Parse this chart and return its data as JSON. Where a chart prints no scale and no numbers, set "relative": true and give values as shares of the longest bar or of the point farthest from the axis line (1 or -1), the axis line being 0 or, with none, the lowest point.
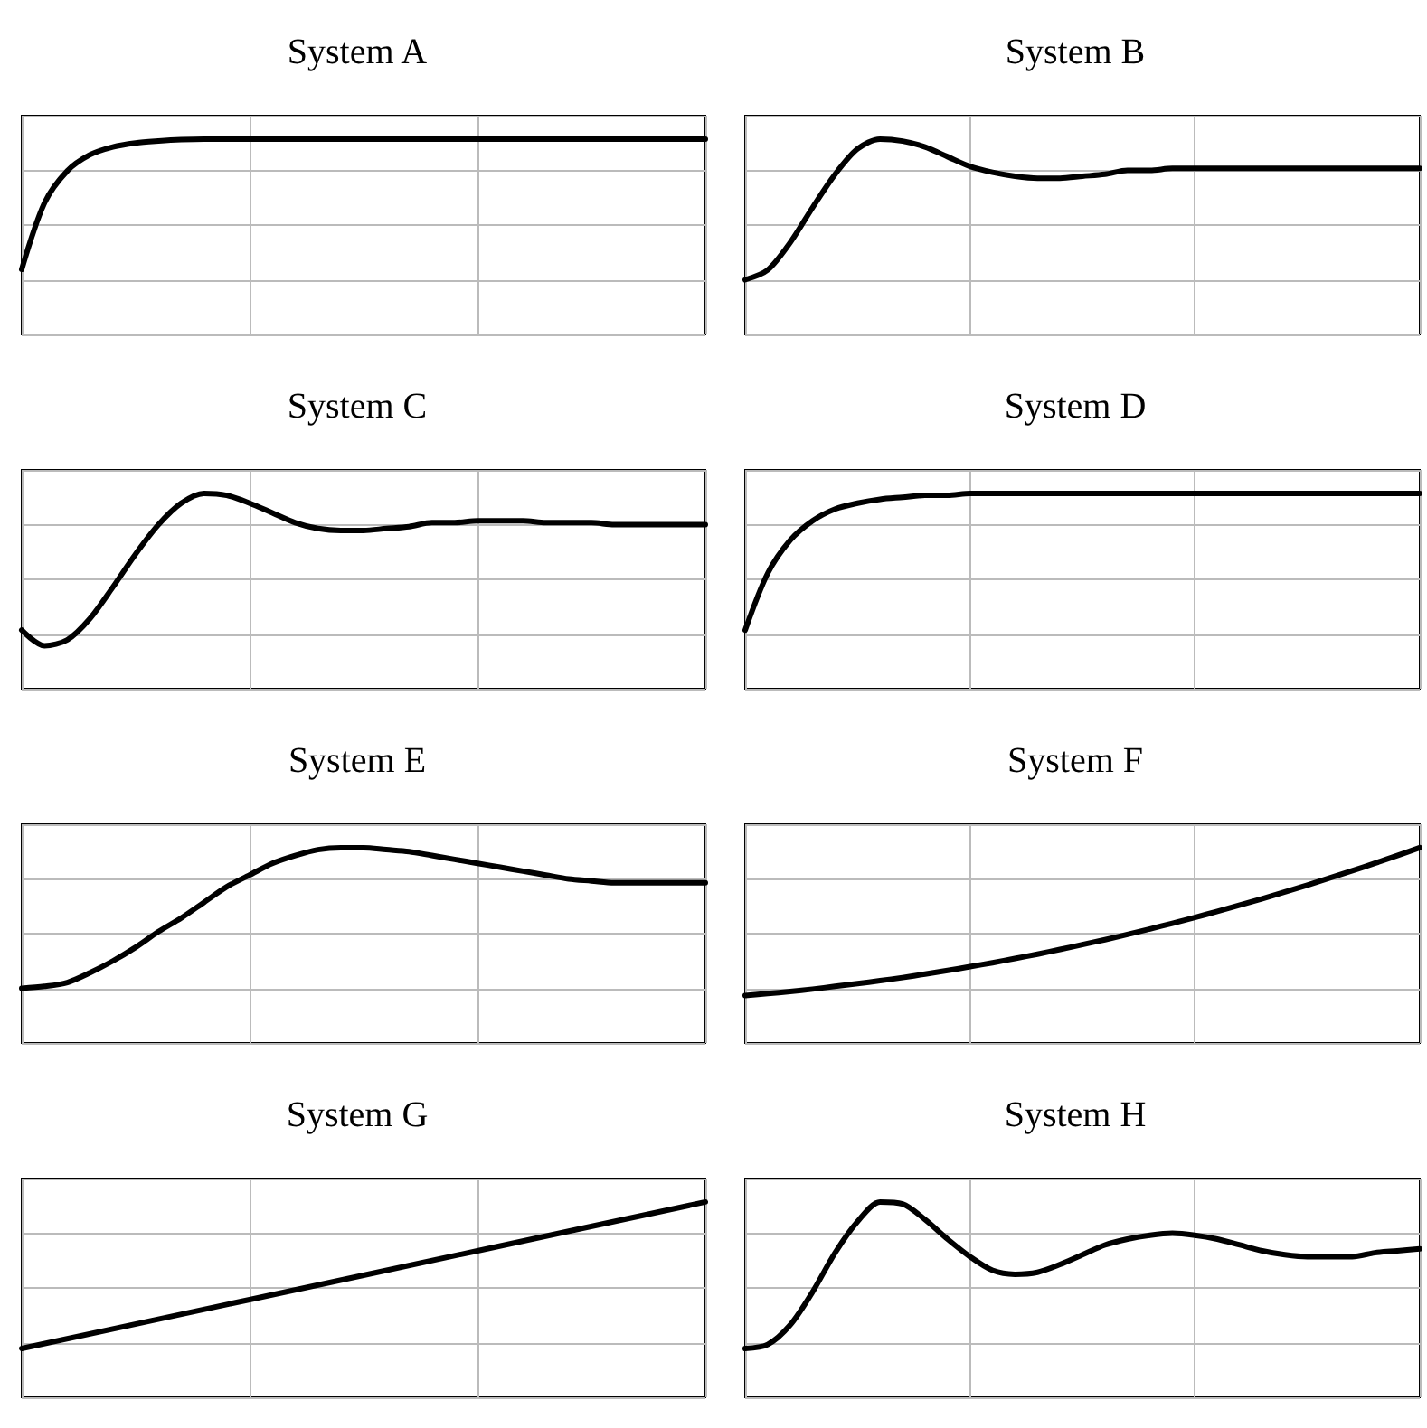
{
  "chart_data": [
    {
      "type": "line",
      "title": "System A",
      "relative": true,
      "grid": true,
      "marker": "none",
      "line_style": "solid",
      "color": "#000000",
      "categories": [
        null,
        null,
        null,
        null,
        null,
        null,
        null,
        null,
        null,
        null,
        null,
        null,
        null,
        null,
        null,
        null,
        null,
        null,
        null,
        null,
        null,
        null,
        null,
        null,
        null,
        null,
        null,
        null,
        null,
        null,
        null
      ],
      "values": [
        0.333,
        0.673,
        0.837,
        0.92,
        0.96,
        0.98,
        0.99,
        0.997,
        1,
        1,
        1,
        1,
        1,
        1,
        1,
        1,
        1,
        1,
        1,
        1,
        1,
        1,
        1,
        1,
        1,
        1,
        1,
        1,
        1,
        1,
        1
      ]
    },
    {
      "type": "line",
      "title": "System B",
      "relative": true,
      "grid": true,
      "marker": "none",
      "line_style": "solid",
      "color": "#000000",
      "categories": [
        null,
        null,
        null,
        null,
        null,
        null,
        null,
        null,
        null,
        null,
        null,
        null,
        null,
        null,
        null,
        null,
        null,
        null,
        null,
        null,
        null,
        null,
        null,
        null,
        null,
        null,
        null,
        null,
        null,
        null,
        null
      ],
      "values": [
        0.28,
        0.33,
        0.47,
        0.65,
        0.82,
        0.95,
        1,
        0.99,
        0.96,
        0.91,
        0.86,
        0.83,
        0.81,
        0.8,
        0.8,
        0.81,
        0.82,
        0.84,
        0.84,
        0.85,
        0.85,
        0.85,
        0.85,
        0.85,
        0.85,
        0.85,
        0.85,
        0.85,
        0.85,
        0.85,
        0.85
      ]
    },
    {
      "type": "line",
      "title": "System C",
      "relative": true,
      "grid": true,
      "marker": "none",
      "line_style": "solid",
      "color": "#000000",
      "categories": [
        null,
        null,
        null,
        null,
        null,
        null,
        null,
        null,
        null,
        null,
        null,
        null,
        null,
        null,
        null,
        null,
        null,
        null,
        null,
        null,
        null,
        null,
        null,
        null,
        null,
        null,
        null,
        null,
        null,
        null,
        null
      ],
      "values": [
        0.3,
        0.22,
        0.25,
        0.36,
        0.52,
        0.69,
        0.84,
        0.95,
        1,
        0.99,
        0.95,
        0.9,
        0.85,
        0.82,
        0.81,
        0.81,
        0.82,
        0.83,
        0.85,
        0.85,
        0.86,
        0.86,
        0.86,
        0.85,
        0.85,
        0.85,
        0.84,
        0.84,
        0.84,
        0.84,
        0.84
      ]
    },
    {
      "type": "line",
      "title": "System D",
      "relative": true,
      "grid": true,
      "marker": "none",
      "line_style": "solid",
      "color": "#000000",
      "categories": [
        null,
        null,
        null,
        null,
        null,
        null,
        null,
        null,
        null,
        null,
        null,
        null,
        null,
        null,
        null,
        null,
        null,
        null,
        null,
        null,
        null,
        null,
        null,
        null,
        null,
        null,
        null,
        null,
        null,
        null,
        null
      ],
      "values": [
        0.3,
        0.59,
        0.76,
        0.86,
        0.92,
        0.95,
        0.97,
        0.98,
        0.99,
        0.99,
        1,
        1,
        1,
        1,
        1,
        1,
        1,
        1,
        1,
        1,
        1,
        1,
        1,
        1,
        1,
        1,
        1,
        1,
        1,
        1,
        1
      ]
    },
    {
      "type": "line",
      "title": "System E",
      "relative": true,
      "grid": true,
      "marker": "none",
      "line_style": "solid",
      "color": "#000000",
      "categories": [
        null,
        null,
        null,
        null,
        null,
        null,
        null,
        null,
        null,
        null,
        null,
        null,
        null,
        null,
        null,
        null,
        null,
        null,
        null,
        null,
        null,
        null,
        null,
        null,
        null,
        null,
        null,
        null,
        null,
        null,
        null
      ],
      "values": [
        0.28,
        0.29,
        0.31,
        0.36,
        0.42,
        0.49,
        0.57,
        0.64,
        0.72,
        0.8,
        0.86,
        0.92,
        0.96,
        0.99,
        1,
        1,
        0.99,
        0.98,
        0.96,
        0.94,
        0.92,
        0.9,
        0.88,
        0.86,
        0.84,
        0.83,
        0.82,
        0.82,
        0.82,
        0.82,
        0.82
      ]
    },
    {
      "type": "line",
      "title": "System F",
      "relative": true,
      "grid": true,
      "marker": "none",
      "line_style": "solid",
      "color": "#000000",
      "categories": [
        null,
        null,
        null,
        null,
        null,
        null,
        null,
        null,
        null,
        null,
        null,
        null,
        null,
        null,
        null,
        null,
        null,
        null,
        null,
        null,
        null,
        null,
        null,
        null,
        null,
        null,
        null,
        null,
        null,
        null,
        null
      ],
      "values": [
        0.243,
        0.253,
        0.264,
        0.276,
        0.29,
        0.304,
        0.319,
        0.335,
        0.353,
        0.371,
        0.391,
        0.411,
        0.433,
        0.455,
        0.479,
        0.504,
        0.529,
        0.556,
        0.584,
        0.613,
        0.643,
        0.674,
        0.706,
        0.739,
        0.773,
        0.808,
        0.845,
        0.882,
        0.92,
        0.96,
        1
      ]
    },
    {
      "type": "line",
      "title": "System G",
      "relative": true,
      "grid": true,
      "marker": "none",
      "line_style": "solid",
      "color": "#000000",
      "categories": [
        null,
        null,
        null,
        null
      ],
      "values": [
        0.25,
        0.5,
        0.75,
        1
      ]
    },
    {
      "type": "line",
      "title": "System H",
      "relative": true,
      "grid": true,
      "marker": "none",
      "line_style": "solid",
      "color": "#000000",
      "categories": [
        null,
        null,
        null,
        null,
        null,
        null,
        null,
        null,
        null,
        null,
        null,
        null,
        null,
        null,
        null,
        null,
        null,
        null,
        null,
        null,
        null,
        null,
        null,
        null,
        null,
        null,
        null,
        null,
        null,
        null,
        null
      ],
      "values": [
        0.25,
        0.27,
        0.37,
        0.54,
        0.74,
        0.9,
        1,
        0.99,
        0.91,
        0.81,
        0.72,
        0.65,
        0.63,
        0.64,
        0.68,
        0.73,
        0.78,
        0.81,
        0.83,
        0.84,
        0.83,
        0.81,
        0.78,
        0.75,
        0.73,
        0.72,
        0.72,
        0.72,
        0.74,
        0.75,
        0.76
      ]
    }
  ]
}
